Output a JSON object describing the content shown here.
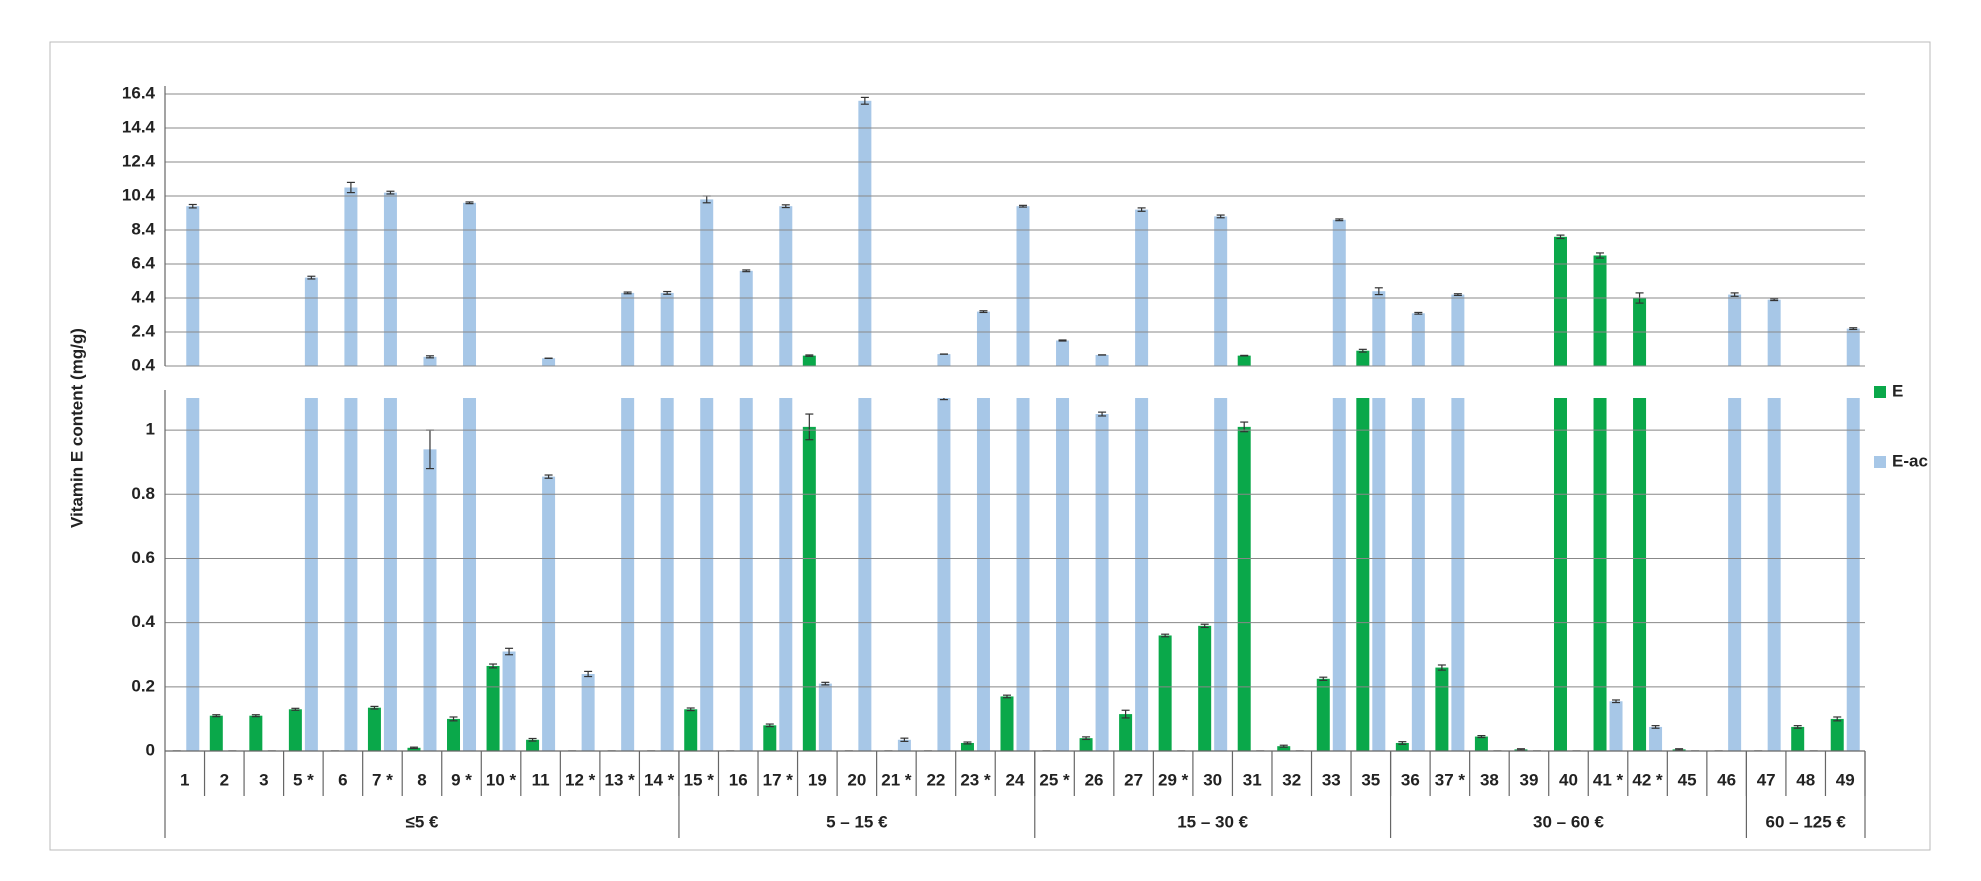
{
  "chart_data": {
    "type": "broken-bar",
    "y_axis_label": "Vitamin E content (mg/g)",
    "groups": [
      {
        "label": "≤5 €",
        "categories": [
          "1",
          "2",
          "3",
          "5 *",
          "6",
          "7 *",
          "8",
          "9 *",
          "10 *",
          "11",
          "12 *",
          "13 *",
          "14 *"
        ]
      },
      {
        "label": "5 – 15 €",
        "categories": [
          "15 *",
          "16",
          "17 *",
          "19",
          "20",
          "21 *",
          "22",
          "23 *",
          "24"
        ]
      },
      {
        "label": "15 – 30 €",
        "categories": [
          "25 *",
          "26",
          "27",
          "29 *",
          "30",
          "31",
          "32",
          "33",
          "35"
        ]
      },
      {
        "label": "30 – 60 €",
        "categories": [
          "36",
          "37 *",
          "38",
          "39",
          "40",
          "41 *",
          "42 *",
          "45",
          "46"
        ]
      },
      {
        "label": "60 – 125 €",
        "categories": [
          "47",
          "48",
          "49"
        ]
      }
    ],
    "series": [
      {
        "name": "E",
        "color": "#0aa84a",
        "values": [
          0,
          0.11,
          0.11,
          0.13,
          0,
          0.135,
          0.01,
          0.1,
          0.265,
          0.035,
          0,
          0,
          0,
          0.13,
          0,
          0.08,
          1.01,
          0,
          0,
          0,
          0.025,
          0.17,
          0,
          0.04,
          0.115,
          0.36,
          0.39,
          1.01,
          0.015,
          0.225,
          1.3,
          0.025,
          0.26,
          0.045,
          0.005,
          8.0,
          6.9,
          4.4,
          0.005,
          0,
          0,
          0.075,
          0.1
        ],
        "errors": [
          0,
          0.003,
          0.003,
          0.003,
          0,
          0.004,
          0.002,
          0.006,
          0.006,
          0.004,
          0,
          0,
          0,
          0.004,
          0,
          0.004,
          0.04,
          0,
          0,
          0,
          0.003,
          0.004,
          0,
          0.004,
          0.012,
          0.004,
          0.005,
          0.015,
          0.003,
          0.005,
          0.08,
          0.004,
          0.008,
          0.003,
          0.002,
          0.1,
          0.15,
          0.3,
          0.002,
          0,
          0,
          0.004,
          0.006
        ]
      },
      {
        "name": "E-ac",
        "color": "#a7c7e7",
        "values": [
          9.8,
          0,
          0,
          5.6,
          10.9,
          10.6,
          0.94,
          10.0,
          0.31,
          0.855,
          0.24,
          4.7,
          4.7,
          10.2,
          6.0,
          9.8,
          0.21,
          16.0,
          0.035,
          1.1,
          3.6,
          9.8,
          1.9,
          1.05,
          9.6,
          0,
          9.2,
          0,
          0,
          9.0,
          4.8,
          3.5,
          4.6,
          0,
          0,
          0,
          0.155,
          0.075,
          0,
          4.6,
          4.3,
          0,
          2.6
        ],
        "errors": [
          0.1,
          0,
          0,
          0.08,
          0.3,
          0.08,
          0.06,
          0.05,
          0.01,
          0.005,
          0.008,
          0.05,
          0.08,
          0.2,
          0.05,
          0.08,
          0.004,
          0.2,
          0.005,
          0.005,
          0.05,
          0.05,
          0.03,
          0.006,
          0.1,
          0,
          0.08,
          0,
          0,
          0.05,
          0.2,
          0.05,
          0.05,
          0,
          0,
          0,
          0.004,
          0.004,
          0,
          0.1,
          0.05,
          0,
          0.05
        ]
      }
    ],
    "ylim_upper": [
      0.4,
      16.4
    ],
    "yticks_upper": [
      0.4,
      2.4,
      4.4,
      6.4,
      8.4,
      10.4,
      12.4,
      14.4,
      16.4
    ],
    "ylim": [
      0,
      1.1
    ],
    "yticks": [
      0,
      0.2,
      0.4,
      0.6,
      0.8,
      1
    ],
    "grid": true,
    "legend": "right"
  }
}
